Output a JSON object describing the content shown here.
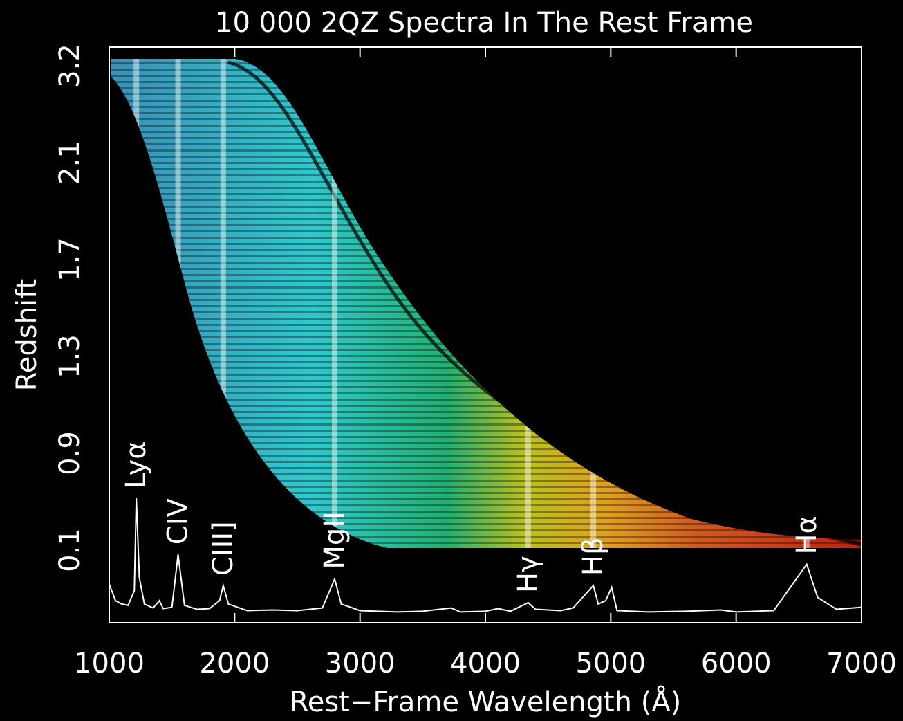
{
  "chart_data": {
    "type": "spectrum",
    "title": "10 000 2QZ Spectra In The Rest Frame",
    "x_label": "Rest−Frame Wavelength (Å)",
    "y_label": "Redshift",
    "xlim": [
      1000,
      7000
    ],
    "xticks": [
      1000,
      2000,
      3000,
      4000,
      5000,
      6000,
      7000
    ],
    "y_categories": [
      "0.1",
      "0.9",
      "1.3",
      "1.7",
      "2.1",
      "3.2"
    ],
    "emission_lines": [
      {
        "label": "Lyα",
        "wavelength": 1216
      },
      {
        "label": "CIV",
        "wavelength": 1549
      },
      {
        "label": "CIII]",
        "wavelength": 1909
      },
      {
        "label": "MgII",
        "wavelength": 2798
      },
      {
        "label": "Hγ",
        "wavelength": 4341
      },
      {
        "label": "Hβ",
        "wavelength": 4861
      },
      {
        "label": "Hα",
        "wavelength": 6563
      }
    ],
    "composite": {
      "color": "#ffffff",
      "x": [
        1000,
        1050,
        1100,
        1150,
        1200,
        1216,
        1240,
        1280,
        1350,
        1400,
        1430,
        1500,
        1549,
        1600,
        1700,
        1800,
        1880,
        1909,
        1950,
        2100,
        2300,
        2500,
        2700,
        2798,
        2850,
        3000,
        3300,
        3500,
        3727,
        3800,
        4000,
        4102,
        4200,
        4341,
        4400,
        4600,
        4700,
        4861,
        4900,
        4959,
        5007,
        5050,
        5300,
        5600,
        5876,
        6000,
        6300,
        6563,
        6650,
        6800,
        7000
      ],
      "values": [
        5,
        2.5,
        2,
        1.8,
        4,
        18,
        6,
        2,
        1.4,
        2.5,
        1.3,
        1.5,
        9.5,
        1.8,
        1.2,
        1.3,
        2.5,
        4.8,
        2,
        1,
        1.1,
        1,
        1.4,
        5.8,
        2,
        1,
        0.8,
        0.9,
        1.4,
        0.8,
        0.9,
        1.3,
        0.9,
        2.2,
        1.2,
        1,
        1.4,
        4.8,
        2,
        2.5,
        4.5,
        1,
        0.8,
        0.9,
        1.1,
        0.8,
        1,
        8,
        3,
        1.2,
        1.5
      ]
    }
  }
}
